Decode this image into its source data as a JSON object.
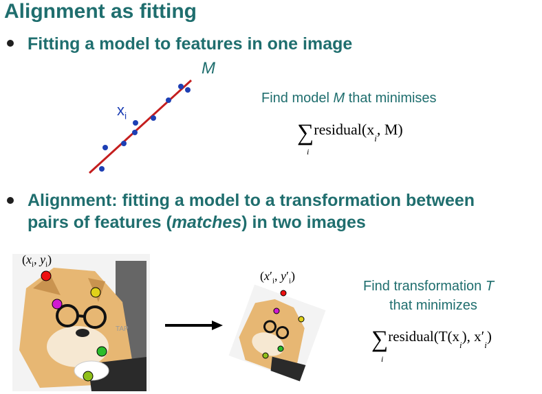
{
  "slide": {
    "title": "Alignment as fitting",
    "bullet1": "Fitting a model to features in one image",
    "bullet2_line1": "Alignment: fitting a model to a transformation between",
    "bullet2_line2_pre": "pairs of features (",
    "bullet2_line2_em": "matches",
    "bullet2_line2_post": ") in two images"
  },
  "line_fit": {
    "model_label": "M",
    "point_label": "x",
    "point_subscript": "i",
    "colors": {
      "line": "#c41e1e",
      "points": "#1d3fb4"
    }
  },
  "model_text": {
    "find_pre": "Find model ",
    "find_em": "M",
    "find_post": " that minimises",
    "sum_sub": "i",
    "formula": "residual(x",
    "formula_sub": "i",
    "formula_end": ", M)"
  },
  "transform_text": {
    "line1_pre": "Find transformation ",
    "line1_em": "T",
    "line2": "that minimizes",
    "sum_sub": "i",
    "formula_a": "residual(T(x",
    "formula_sub1": "i",
    "formula_b": "), x",
    "formula_prime": "′",
    "formula_sub2": "i",
    "formula_c": ")"
  },
  "images": {
    "left_label": "(x_i, y_i)",
    "right_label": "(x'_i, y'_i)",
    "keyboard_text": "TAP",
    "point_colors": [
      "#e11",
      "#e0d11a",
      "#d11bd1",
      "#2bbd2b",
      "#8fbf1a"
    ]
  },
  "colors": {
    "heading": "#1f6e6e",
    "arrow": "#000000"
  }
}
